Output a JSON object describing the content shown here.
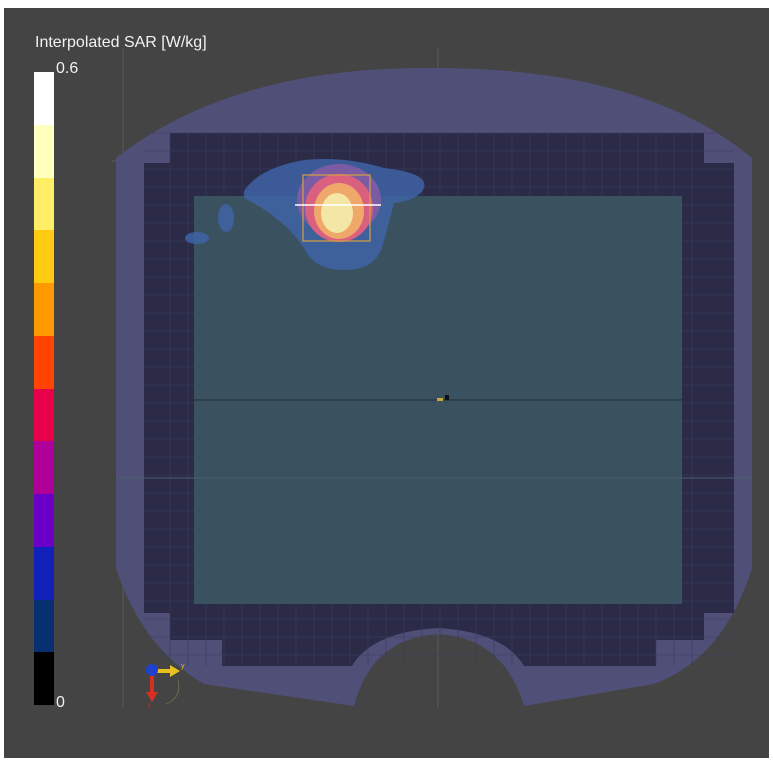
{
  "legend": {
    "title": "Interpolated SAR [W/kg]",
    "max_label": "0.6",
    "min_label": "0",
    "colors": [
      "#ffffff",
      "#ffffbe",
      "#ffee66",
      "#ffcc11",
      "#ff9900",
      "#ff4400",
      "#e8004a",
      "#b0009a",
      "#6a00c8",
      "#1020b8",
      "#083070",
      "#000000"
    ]
  },
  "scene": {
    "phantom_color": "#4f4f78",
    "frame_color": "#2b2b48",
    "grid_color": "#3c3c5e",
    "plate_color": "#3a5160",
    "hotspot_colors": [
      "#3f63a6",
      "#8a5ba8",
      "#d9607f",
      "#efa76a",
      "#f4e7a6"
    ],
    "box_color": "#d8a040",
    "probe_line_color": "#ffffff"
  },
  "axis_triad": {
    "x_color": "#d83020",
    "y_color": "#e8c020",
    "z_color": "#2040d0",
    "y_label": "y",
    "x_label": "x"
  }
}
